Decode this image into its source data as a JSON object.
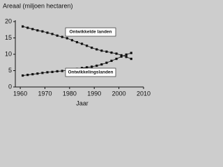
{
  "chart_data": {
    "type": "line",
    "title": "Areaal (miljoen hectaren)",
    "x_label": "Jaar",
    "x": [
      1961,
      1963,
      1965,
      1967,
      1969,
      1971,
      1973,
      1975,
      1977,
      1979,
      1981,
      1983,
      1985,
      1987,
      1989,
      1991,
      1993,
      1995,
      1997,
      1999,
      2001,
      2003,
      2005
    ],
    "series": [
      {
        "name": "Ontwikkelde landen",
        "color": "#111111",
        "values": [
          18.5,
          18.1,
          17.7,
          17.3,
          17.0,
          16.6,
          16.2,
          15.7,
          15.3,
          14.9,
          14.3,
          13.7,
          13.2,
          12.6,
          12.0,
          11.5,
          11.1,
          10.8,
          10.5,
          10.2,
          9.7,
          9.2,
          8.6
        ]
      },
      {
        "name": "Ontwikkelingslanden",
        "color": "#111111",
        "values": [
          3.5,
          3.7,
          3.9,
          4.1,
          4.3,
          4.5,
          4.6,
          4.8,
          4.9,
          5.1,
          5.3,
          5.5,
          5.8,
          6.0,
          6.2,
          6.5,
          6.9,
          7.4,
          8.0,
          8.6,
          9.3,
          9.9,
          10.4
        ]
      }
    ],
    "xlim": [
      1958,
      2010
    ],
    "xticks": [
      1960,
      1970,
      1980,
      1990,
      2000,
      2010
    ],
    "ylim": [
      0,
      20
    ],
    "yticks": [
      0,
      5,
      10,
      15,
      20
    ]
  }
}
